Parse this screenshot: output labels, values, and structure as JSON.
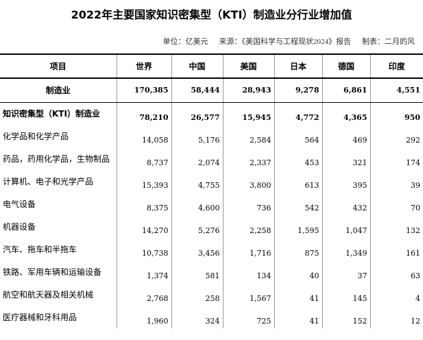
{
  "header": {
    "title": "2022年主要国家知识密集型（KTI）制造业分行业增加值",
    "unit": "单位：亿美元",
    "source": "来源：《美国科学与工程现状2024》报告",
    "author": "制表：二月的风"
  },
  "table": {
    "columns": [
      "项目",
      "世界",
      "中国",
      "美国",
      "日本",
      "德国",
      "印度"
    ],
    "rows": [
      [
        "制造业",
        "170,385",
        "58,444",
        "28,943",
        "9,278",
        "6,861",
        "4,551"
      ],
      [
        "知识密集型（KTI）制造业",
        "78,210",
        "26,577",
        "15,945",
        "4,772",
        "4,365",
        "950"
      ],
      [
        "化学品和化学产品",
        "14,058",
        "5,176",
        "2,584",
        "564",
        "469",
        "292"
      ],
      [
        "药品，药用化学品，生物制品",
        "8,737",
        "2,074",
        "2,337",
        "453",
        "321",
        "174"
      ],
      [
        "计算机、电子和光学产品",
        "15,393",
        "4,755",
        "3,800",
        "613",
        "395",
        "39"
      ],
      [
        "电气设备",
        "8,375",
        "4,600",
        "736",
        "542",
        "432",
        "70"
      ],
      [
        "机器设备",
        "14,270",
        "5,276",
        "2,258",
        "1,595",
        "1,047",
        "132"
      ],
      [
        "汽车、拖车和半拖车",
        "10,738",
        "3,456",
        "1,716",
        "875",
        "1,349",
        "161"
      ],
      [
        "铁路、军用车辆和运输设备",
        "1,374",
        "581",
        "134",
        "40",
        "37",
        "63"
      ],
      [
        "航空和航天器及相关机械",
        "2,768",
        "258",
        "1,567",
        "41",
        "145",
        "4"
      ],
      [
        "医疗器械和牙科用品",
        "1,960",
        "324",
        "725",
        "41",
        "152",
        "12"
      ]
    ]
  }
}
